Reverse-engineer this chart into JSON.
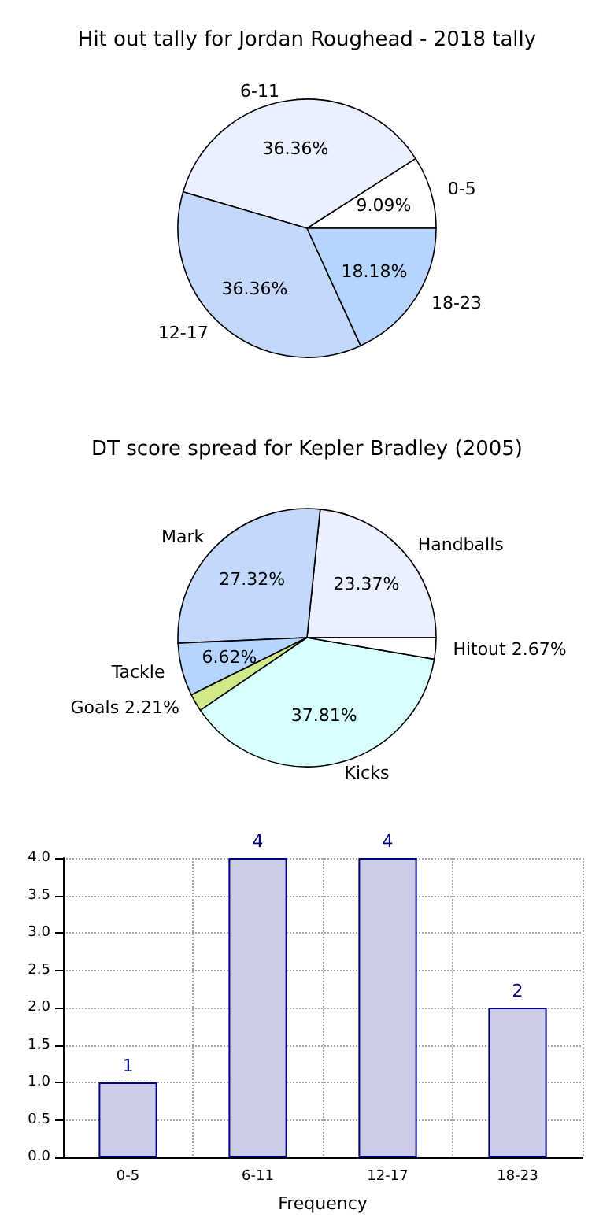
{
  "chart_data": [
    {
      "type": "pie",
      "title": "Hit out tally for Jordan Roughead - 2018 tally",
      "categories": [
        "0-5",
        "6-11",
        "12-17",
        "18-23"
      ],
      "values": [
        9.09,
        36.36,
        36.36,
        18.18
      ],
      "colors": [
        "#ffffff",
        "#eaf0ff",
        "#c4d8fc",
        "#b5d5ff"
      ],
      "value_labels": [
        "9.09%",
        "36.36%",
        "36.36%",
        "18.18%"
      ]
    },
    {
      "type": "pie",
      "title": "DT score spread for Kepler Bradley (2005)",
      "categories": [
        "Handballs",
        "Mark",
        "Tackle",
        "Goals",
        "Kicks",
        "Hitout"
      ],
      "values": [
        23.37,
        27.32,
        6.62,
        2.21,
        37.81,
        2.67
      ],
      "colors": [
        "#eaf0ff",
        "#c4d8fc",
        "#b5d5ff",
        "#d0ea8a",
        "#d8ffff",
        "#ffffff"
      ],
      "value_labels": [
        "23.37%",
        "27.32%",
        "6.62%",
        "2.21%",
        "37.81%",
        "2.67%"
      ]
    },
    {
      "type": "bar",
      "xlabel": "Frequency",
      "categories": [
        "0-5",
        "6-11",
        "12-17",
        "18-23"
      ],
      "values": [
        1,
        4,
        4,
        2
      ],
      "color": "#cccce6",
      "data_labels": true,
      "ylim": [
        0,
        4
      ],
      "yticks": [
        {
          "value": 0,
          "label": "0.0"
        },
        {
          "value": 0.5,
          "label": "0.5"
        },
        {
          "value": 1,
          "label": "1.0"
        },
        {
          "value": 1.5,
          "label": "1.5"
        },
        {
          "value": 2,
          "label": "2.0"
        },
        {
          "value": 2.5,
          "label": "2.5"
        },
        {
          "value": 3,
          "label": "3.0"
        },
        {
          "value": 3.5,
          "label": "3.5"
        },
        {
          "value": 4,
          "label": "4.0"
        }
      ],
      "grid": true
    }
  ]
}
